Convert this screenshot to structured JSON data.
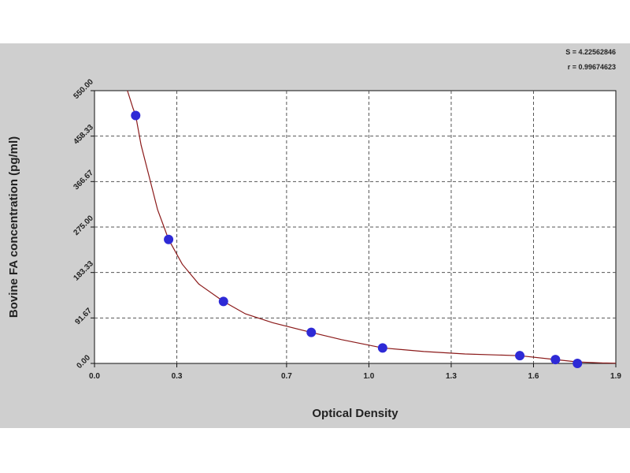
{
  "chart_data": {
    "type": "scatter",
    "xlabel": "Optical Density",
    "ylabel": "Bovine FA concentration (pg/ml)",
    "xlim": [
      0.0,
      1.9
    ],
    "ylim": [
      0.0,
      550.0
    ],
    "xticks": [
      0.0,
      0.3,
      0.7,
      1.0,
      1.3,
      1.6,
      1.9
    ],
    "xtick_labels": [
      "0.0",
      "0.3",
      "0.7",
      "1.0",
      "1.3",
      "1.6",
      "1.9"
    ],
    "yticks": [
      0.0,
      91.67,
      183.33,
      275.0,
      366.67,
      458.33,
      550.0
    ],
    "ytick_labels": [
      "0.00",
      "91.67",
      "183.33",
      "275.00",
      "366.67",
      "458.33",
      "550.00"
    ],
    "grid": true,
    "stats": [
      "S = 4.22562846",
      "r = 0.99674623"
    ],
    "points": [
      {
        "x": 0.15,
        "y": 500.0
      },
      {
        "x": 0.27,
        "y": 250.0
      },
      {
        "x": 0.47,
        "y": 125.0
      },
      {
        "x": 0.79,
        "y": 62.5
      },
      {
        "x": 1.05,
        "y": 31.25
      },
      {
        "x": 1.55,
        "y": 15.6
      },
      {
        "x": 1.68,
        "y": 7.8
      },
      {
        "x": 1.76,
        "y": 0.0
      }
    ],
    "curve": {
      "x": [
        0.12,
        0.14,
        0.15,
        0.17,
        0.2,
        0.23,
        0.27,
        0.32,
        0.38,
        0.47,
        0.55,
        0.65,
        0.79,
        0.9,
        1.05,
        1.2,
        1.35,
        1.55,
        1.68,
        1.76,
        1.85,
        1.9
      ],
      "y": [
        550.0,
        515.0,
        500.0,
        440.0,
        375.0,
        310.0,
        250.0,
        200.0,
        160.0,
        125.0,
        100.0,
        82.0,
        62.5,
        48.0,
        31.25,
        24.0,
        19.0,
        15.6,
        7.8,
        3.0,
        1.0,
        0.5
      ]
    },
    "colors": {
      "background": "#cfcfcf",
      "plot": "#ffffff",
      "curve": "#8b1a1a",
      "point": "#2e2ad6"
    }
  }
}
